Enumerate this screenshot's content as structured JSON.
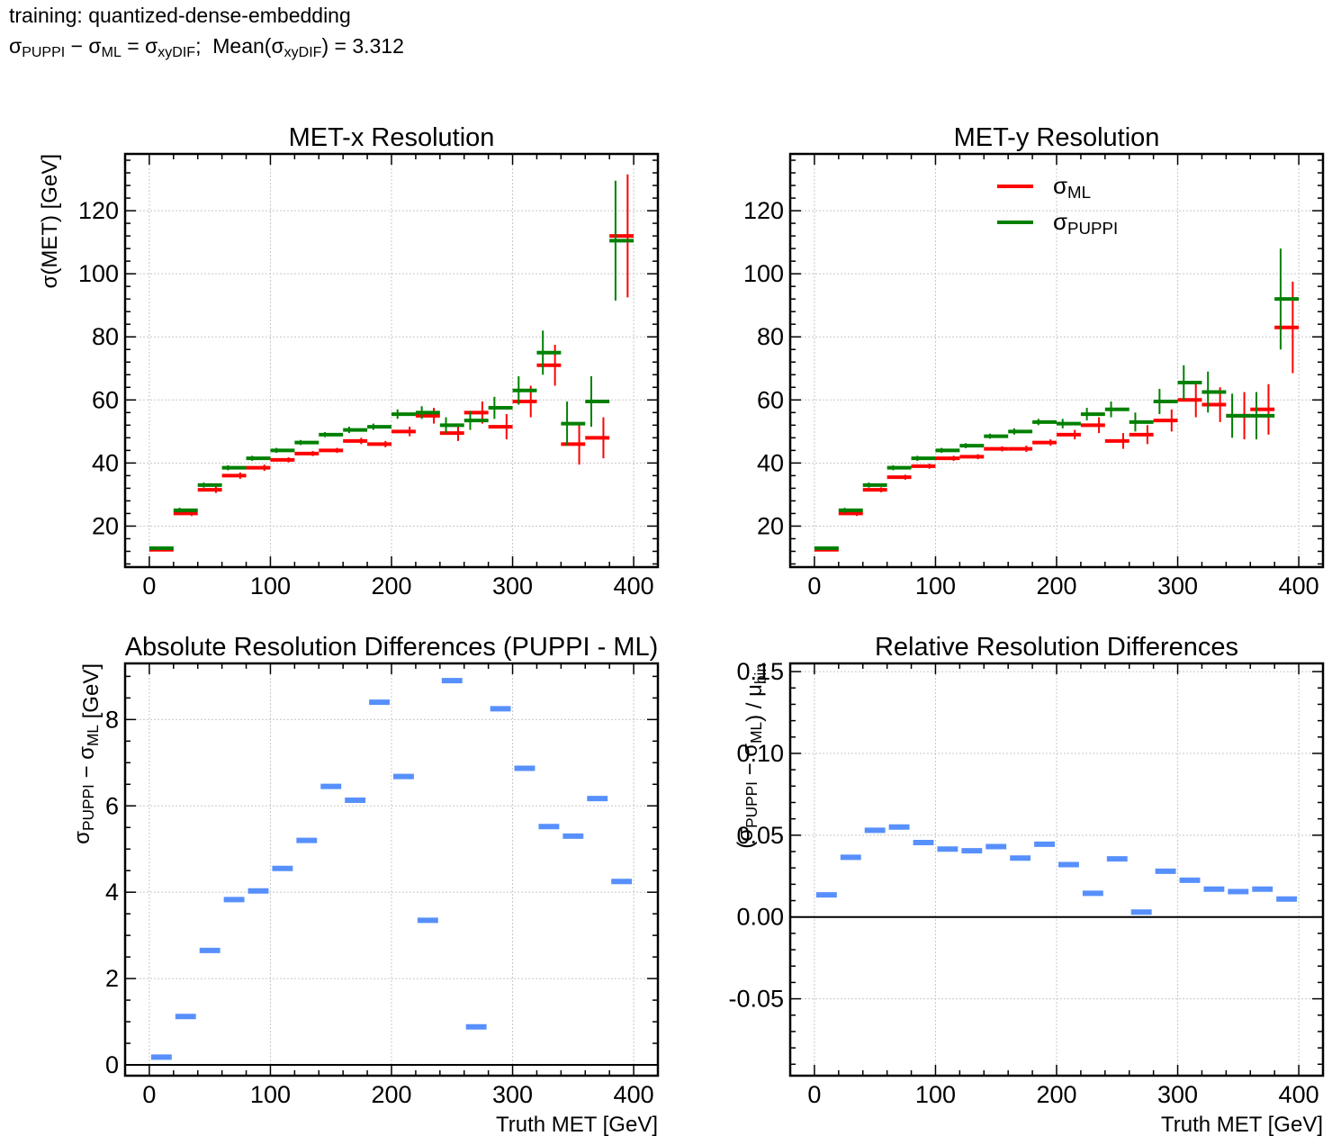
{
  "header": {
    "training_line": "training: quantized-dense-embedding",
    "mean_label": "Mean(",
    "mean_value": "3.312"
  },
  "colors": {
    "ml": "#ff0000",
    "puppi": "#008000",
    "diff": "#5790fc",
    "grid": "#c8c8c8"
  },
  "chart_data": [
    {
      "id": "met-x",
      "type": "scatter",
      "title": "MET-x Resolution",
      "xlabel": "",
      "ylabel": "σ(MET) [GeV]",
      "xlim": [
        -20,
        420
      ],
      "ylim": [
        7,
        138
      ],
      "xticks": [
        0,
        100,
        200,
        300,
        400
      ],
      "yticks": [
        20,
        40,
        60,
        80,
        100,
        120
      ],
      "grid": true,
      "bin_width": 20,
      "series": [
        {
          "key": "ml",
          "offset": 5,
          "x": [
            10,
            30,
            50,
            70,
            90,
            110,
            130,
            150,
            170,
            190,
            210,
            230,
            250,
            270,
            290,
            310,
            330,
            350,
            370,
            390
          ],
          "y": [
            12.5,
            24.0,
            31.5,
            36.0,
            38.5,
            41.0,
            43.0,
            44.0,
            47.0,
            46.0,
            50.0,
            55.0,
            49.5,
            56.0,
            51.5,
            59.5,
            71.0,
            46.0,
            48.0,
            112.0
          ],
          "err": [
            0.5,
            0.8,
            1.0,
            1.0,
            1.0,
            0.8,
            0.8,
            0.8,
            1.0,
            1.0,
            1.5,
            2.5,
            2.5,
            3.5,
            4.0,
            5.0,
            6.5,
            6.5,
            6.5,
            19.5
          ]
        },
        {
          "key": "puppi",
          "offset": -5,
          "x": [
            10,
            30,
            50,
            70,
            90,
            110,
            130,
            150,
            170,
            190,
            210,
            230,
            250,
            270,
            290,
            310,
            330,
            350,
            370,
            390
          ],
          "y": [
            13.0,
            25.0,
            33.0,
            38.5,
            41.5,
            44.0,
            46.5,
            49.0,
            50.5,
            51.5,
            55.5,
            56.0,
            52.0,
            53.5,
            57.5,
            63.0,
            75.0,
            52.5,
            59.5,
            110.5
          ],
          "err": [
            0.5,
            0.8,
            0.8,
            0.8,
            0.8,
            0.8,
            0.8,
            0.8,
            1.0,
            1.0,
            1.5,
            2.0,
            2.5,
            3.0,
            3.5,
            4.5,
            7.0,
            7.0,
            8.0,
            19.0
          ]
        }
      ]
    },
    {
      "id": "met-y",
      "type": "scatter",
      "title": "MET-y Resolution",
      "xlabel": "",
      "ylabel": "",
      "xlim": [
        -20,
        420
      ],
      "ylim": [
        7,
        138
      ],
      "xticks": [
        0,
        100,
        200,
        300,
        400
      ],
      "yticks": [
        20,
        40,
        60,
        80,
        100,
        120
      ],
      "grid": true,
      "bin_width": 20,
      "legend": {
        "placement": "upper-center",
        "entries": [
          {
            "key": "ml",
            "base": "σ",
            "sub": "ML"
          },
          {
            "key": "puppi",
            "base": "σ",
            "sub": "PUPPI"
          }
        ]
      },
      "series": [
        {
          "key": "ml",
          "offset": 5,
          "x": [
            10,
            30,
            50,
            70,
            90,
            110,
            130,
            150,
            170,
            190,
            210,
            230,
            250,
            270,
            290,
            310,
            330,
            350,
            370,
            390
          ],
          "y": [
            12.5,
            24.0,
            31.5,
            35.5,
            39.0,
            41.5,
            42.0,
            44.5,
            44.5,
            46.5,
            49.0,
            52.0,
            47.0,
            49.0,
            53.5,
            60.0,
            58.5,
            55.0,
            57.0,
            83.0
          ],
          "err": [
            0.5,
            0.8,
            0.8,
            0.8,
            0.8,
            0.8,
            0.8,
            0.8,
            1.0,
            1.0,
            1.5,
            2.5,
            2.5,
            3.0,
            3.5,
            5.5,
            5.5,
            7.5,
            8.0,
            14.5
          ]
        },
        {
          "key": "puppi",
          "offset": -5,
          "x": [
            10,
            30,
            50,
            70,
            90,
            110,
            130,
            150,
            170,
            190,
            210,
            230,
            250,
            270,
            290,
            310,
            330,
            350,
            370,
            390
          ],
          "y": [
            13.0,
            25.0,
            33.0,
            38.5,
            41.5,
            44.0,
            45.5,
            48.5,
            50.0,
            53.0,
            52.5,
            55.5,
            57.0,
            53.0,
            59.5,
            65.5,
            62.5,
            55.0,
            55.0,
            92.0
          ],
          "err": [
            0.5,
            0.8,
            0.8,
            0.8,
            0.8,
            0.8,
            0.8,
            0.8,
            1.0,
            1.0,
            1.5,
            2.0,
            2.5,
            3.0,
            4.0,
            5.5,
            6.5,
            7.0,
            7.5,
            16.0
          ]
        }
      ]
    },
    {
      "id": "abs-diff",
      "type": "scatter",
      "title": "Absolute Resolution Differences (PUPPI - ML)",
      "xlabel": "Truth MET [GeV]",
      "ylabel_parts": {
        "base1": "σ",
        "sub1": "PUPPI",
        "mid": " − σ",
        "sub2": "ML",
        "end": " [GeV]"
      },
      "xlim": [
        -20,
        420
      ],
      "ylim": [
        -0.25,
        9.3
      ],
      "xticks": [
        0,
        100,
        200,
        300,
        400
      ],
      "yticks": [
        0,
        2,
        4,
        6,
        8
      ],
      "grid": true,
      "bin_width": 20,
      "zero_line": true,
      "series": [
        {
          "key": "diff",
          "offset": 0,
          "x": [
            10,
            30,
            50,
            70,
            90,
            110,
            130,
            150,
            170,
            190,
            210,
            230,
            250,
            270,
            290,
            310,
            330,
            350,
            370,
            390
          ],
          "y": [
            0.18,
            1.12,
            2.65,
            3.83,
            4.03,
            4.55,
            5.2,
            6.45,
            6.13,
            8.4,
            6.68,
            3.35,
            8.9,
            0.88,
            8.25,
            6.87,
            5.52,
            5.3,
            6.17,
            4.25
          ]
        }
      ]
    },
    {
      "id": "rel-diff",
      "type": "scatter",
      "title": "Relative Resolution Differences",
      "xlabel": "Truth MET [GeV]",
      "ylabel_parts": {
        "open": "(σ",
        "sub1": "PUPPI",
        "mid": " − σ",
        "sub2": "ML",
        "close": ") / μ",
        "sub3": "bin"
      },
      "xlim": [
        -20,
        420
      ],
      "ylim": [
        -0.097,
        0.155
      ],
      "xticks": [
        0,
        100,
        200,
        300,
        400
      ],
      "yticks": [
        -0.05,
        0.0,
        0.05,
        0.1,
        0.15
      ],
      "ytick_labels": [
        "-0.05",
        "0.00",
        "0.05",
        "0.10",
        "0.15"
      ],
      "grid": true,
      "bin_width": 20,
      "zero_line": true,
      "series": [
        {
          "key": "diff",
          "offset": 0,
          "x": [
            10,
            30,
            50,
            70,
            90,
            110,
            130,
            150,
            170,
            190,
            210,
            230,
            250,
            270,
            290,
            310,
            330,
            350,
            370,
            390
          ],
          "y": [
            0.0135,
            0.0365,
            0.053,
            0.055,
            0.0455,
            0.0415,
            0.0405,
            0.043,
            0.036,
            0.0445,
            0.032,
            0.0145,
            0.0355,
            0.003,
            0.028,
            0.0225,
            0.017,
            0.0155,
            0.017,
            0.011
          ]
        }
      ]
    }
  ]
}
